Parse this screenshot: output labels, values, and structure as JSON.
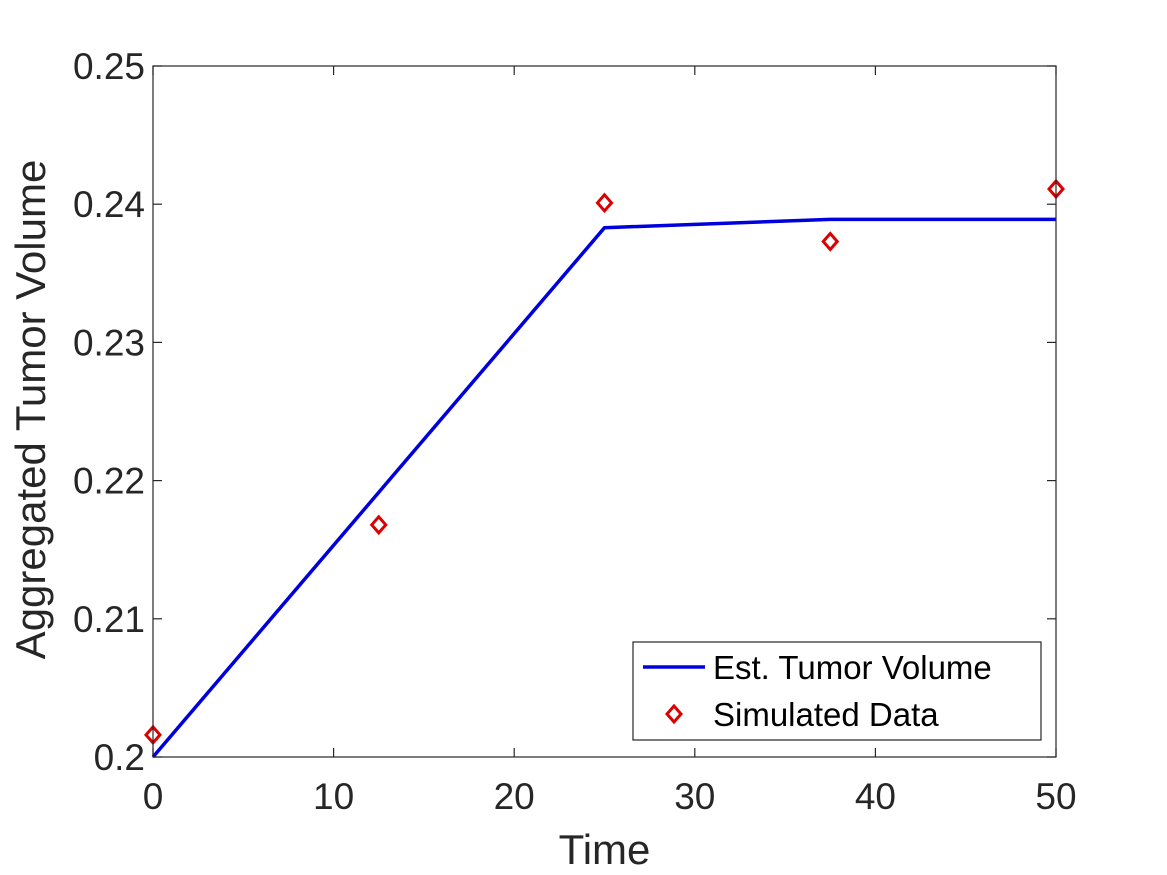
{
  "chart_data": {
    "type": "line",
    "xlabel": "Time",
    "ylabel": "Aggregated Tumor Volume",
    "xlim": [
      0,
      50
    ],
    "ylim": [
      0.2,
      0.25
    ],
    "xticks": [
      0,
      10,
      20,
      30,
      40,
      50
    ],
    "yticks": [
      0.2,
      0.21,
      0.22,
      0.23,
      0.24,
      0.25
    ],
    "xtick_labels": [
      "0",
      "10",
      "20",
      "30",
      "40",
      "50"
    ],
    "ytick_labels": [
      "0.2",
      "0.21",
      "0.22",
      "0.23",
      "0.24",
      "0.25"
    ],
    "grid": false,
    "legend_position": "bottom-right",
    "series": [
      {
        "name": "Est. Tumor Volume",
        "kind": "line",
        "color": "#0000dd",
        "x": [
          0,
          25,
          37.5,
          50
        ],
        "y": [
          0.2,
          0.2383,
          0.2389,
          0.2389
        ]
      },
      {
        "name": "Simulated Data",
        "kind": "marker",
        "marker": "diamond",
        "color": "#dd0000",
        "x": [
          0,
          12.5,
          25,
          37.5,
          50
        ],
        "y": [
          0.2016,
          0.2168,
          0.2401,
          0.2373,
          0.2411
        ]
      }
    ]
  }
}
